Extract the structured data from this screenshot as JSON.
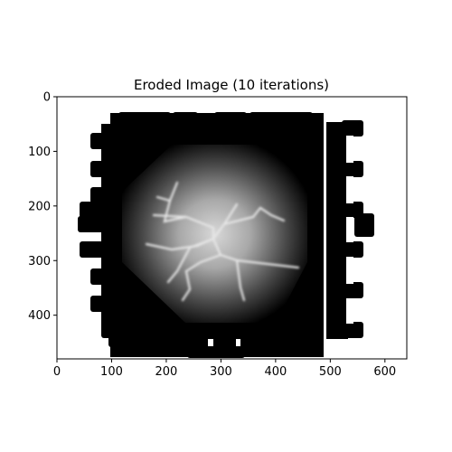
{
  "figure": {
    "title": "Eroded Image (10 iterations)"
  },
  "axes": {
    "x_ticks": [
      0,
      100,
      200,
      300,
      400,
      500,
      600
    ],
    "y_ticks": [
      0,
      100,
      200,
      300,
      400
    ],
    "x_tick_labels": [
      "0",
      "100",
      "200",
      "300",
      "400",
      "500",
      "600"
    ],
    "y_tick_labels": [
      "0",
      "100",
      "200",
      "300",
      "400"
    ],
    "xlim": [
      0,
      640
    ],
    "ylim": [
      480,
      0
    ]
  },
  "image": {
    "description_colors": {
      "background": "#ffffff",
      "blob": "#000000",
      "glow_center": "#dcdcdc"
    }
  }
}
